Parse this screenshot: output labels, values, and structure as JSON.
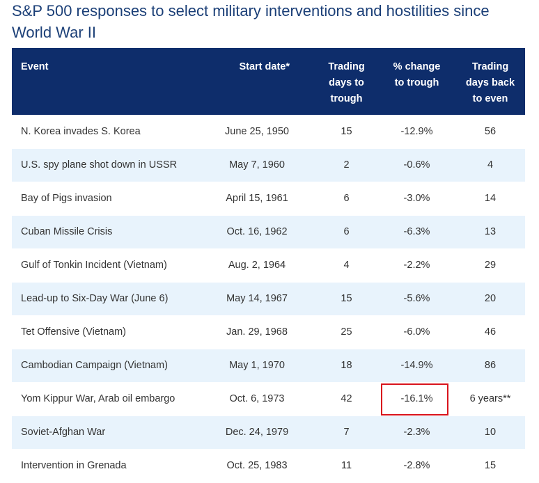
{
  "title": "S&P 500 responses to select military interventions and hostilities since World War II",
  "table": {
    "headers": {
      "event": "Event",
      "start_date": "Start date*",
      "trading_days_to_trough": [
        "Trading",
        "days to",
        "trough"
      ],
      "pct_change_to_trough": [
        "% change",
        "to trough"
      ],
      "trading_days_back_to_even": [
        "Trading",
        "days back",
        "to even"
      ]
    },
    "rows": [
      {
        "event": "N. Korea invades S. Korea",
        "start_date": "June 25, 1950",
        "days_to_trough": "15",
        "pct_change": "-12.9%",
        "days_back_to_even": "56"
      },
      {
        "event": "U.S. spy plane shot down in USSR",
        "start_date": "May 7, 1960",
        "days_to_trough": "2",
        "pct_change": "-0.6%",
        "days_back_to_even": "4"
      },
      {
        "event": "Bay of Pigs invasion",
        "start_date": "April 15, 1961",
        "days_to_trough": "6",
        "pct_change": "-3.0%",
        "days_back_to_even": "14"
      },
      {
        "event": "Cuban Missile Crisis",
        "start_date": "Oct. 16, 1962",
        "days_to_trough": "6",
        "pct_change": "-6.3%",
        "days_back_to_even": "13"
      },
      {
        "event": "Gulf of Tonkin Incident (Vietnam)",
        "start_date": "Aug. 2, 1964",
        "days_to_trough": "4",
        "pct_change": "-2.2%",
        "days_back_to_even": "29"
      },
      {
        "event": "Lead-up to Six-Day War (June 6)",
        "start_date": "May 14, 1967",
        "days_to_trough": "15",
        "pct_change": "-5.6%",
        "days_back_to_even": "20"
      },
      {
        "event": "Tet Offensive (Vietnam)",
        "start_date": "Jan. 29, 1968",
        "days_to_trough": "25",
        "pct_change": "-6.0%",
        "days_back_to_even": "46"
      },
      {
        "event": "Cambodian Campaign (Vietnam)",
        "start_date": "May 1, 1970",
        "days_to_trough": "18",
        "pct_change": "-14.9%",
        "days_back_to_even": "86"
      },
      {
        "event": "Yom Kippur War, Arab oil embargo",
        "start_date": "Oct. 6, 1973",
        "days_to_trough": "42",
        "pct_change": "-16.1%",
        "days_back_to_even": "6 years**",
        "highlighted": true
      },
      {
        "event": "Soviet-Afghan War",
        "start_date": "Dec. 24, 1979",
        "days_to_trough": "7",
        "pct_change": "-2.3%",
        "days_back_to_even": "10"
      },
      {
        "event": "Intervention in Grenada",
        "start_date": "Oct. 25, 1983",
        "days_to_trough": "11",
        "pct_change": "-2.8%",
        "days_back_to_even": "15"
      }
    ]
  },
  "colors": {
    "title": "#1b3f77",
    "header_bg": "#0e2d6b",
    "stripe_bg": "#e8f3fc",
    "highlight_border": "#d9131c"
  }
}
